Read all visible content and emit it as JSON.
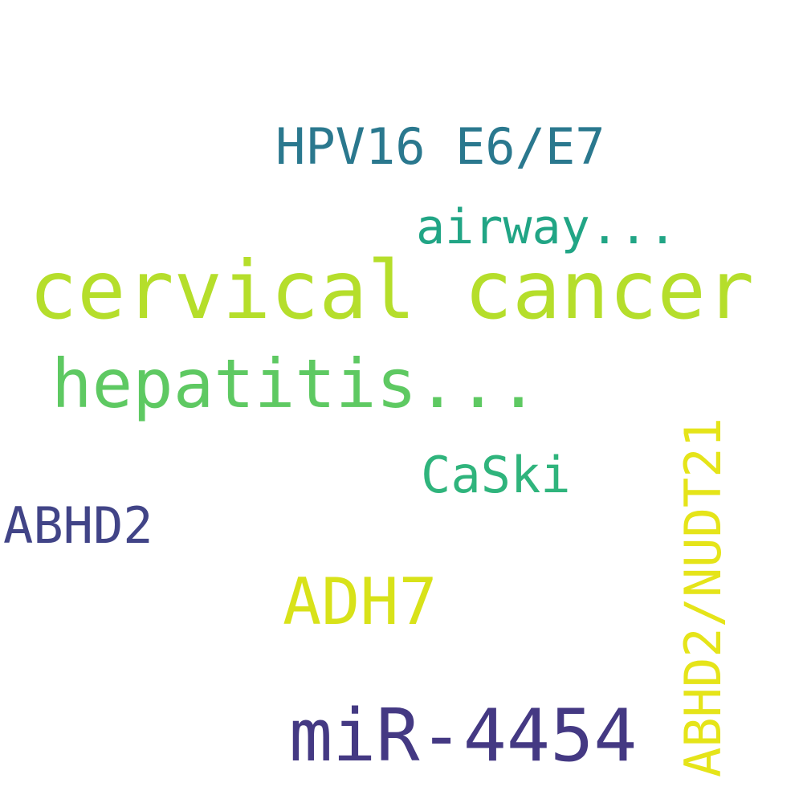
{
  "words": [
    {
      "text": "cervical cancer",
      "color": "#b5de2b"
    },
    {
      "text": "hepatitis...",
      "color": "#5ec962"
    },
    {
      "text": "miR-4454",
      "color": "#443983"
    },
    {
      "text": "HPV16 E6/E7",
      "color": "#2a788e"
    },
    {
      "text": "airway...",
      "color": "#21a585"
    },
    {
      "text": "CaSki",
      "color": "#2fb47c"
    },
    {
      "text": "ABHD2",
      "color": "#414487"
    },
    {
      "text": "ADH7",
      "color": "#d8e219"
    },
    {
      "text": "ABHD2/NUDT21",
      "color": "#e5e419"
    }
  ]
}
